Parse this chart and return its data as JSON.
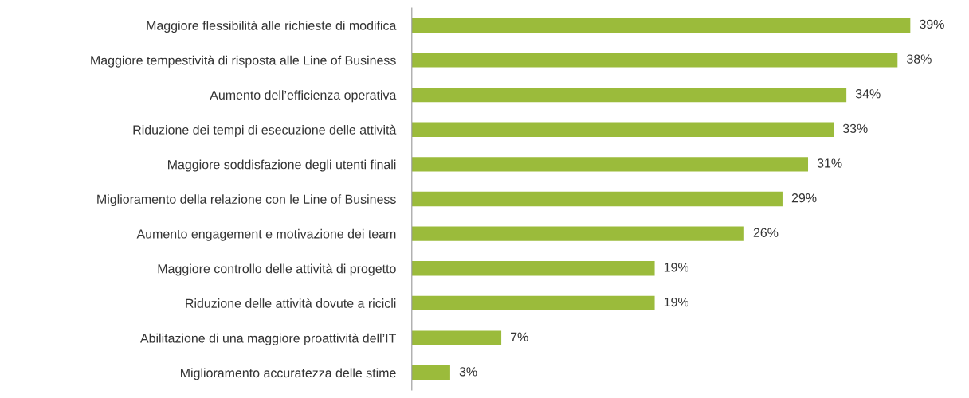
{
  "chart_data": {
    "type": "bar",
    "orientation": "horizontal",
    "categories": [
      "Maggiore flessibilità alle richieste di modifica",
      "Maggiore tempestività di risposta alle Line of Business",
      "Aumento dell’efficienza operativa",
      "Riduzione dei tempi di esecuzione delle attività",
      "Maggiore soddisfazione degli utenti finali",
      "Miglioramento della relazione con le Line of Business",
      "Aumento engagement e motivazione dei team",
      "Maggiore controllo delle attività di progetto",
      "Riduzione delle attività dovute a ricicli",
      "Abilitazione di una maggiore proattività dell’IT",
      "Miglioramento accuratezza delle stime"
    ],
    "values": [
      39,
      38,
      34,
      33,
      31,
      29,
      26,
      19,
      19,
      7,
      3
    ],
    "value_labels": [
      "39%",
      "38%",
      "34%",
      "33%",
      "31%",
      "29%",
      "26%",
      "19%",
      "19%",
      "7%",
      "3%"
    ],
    "color": "#9bbb3b",
    "grid": false,
    "legend": false
  }
}
